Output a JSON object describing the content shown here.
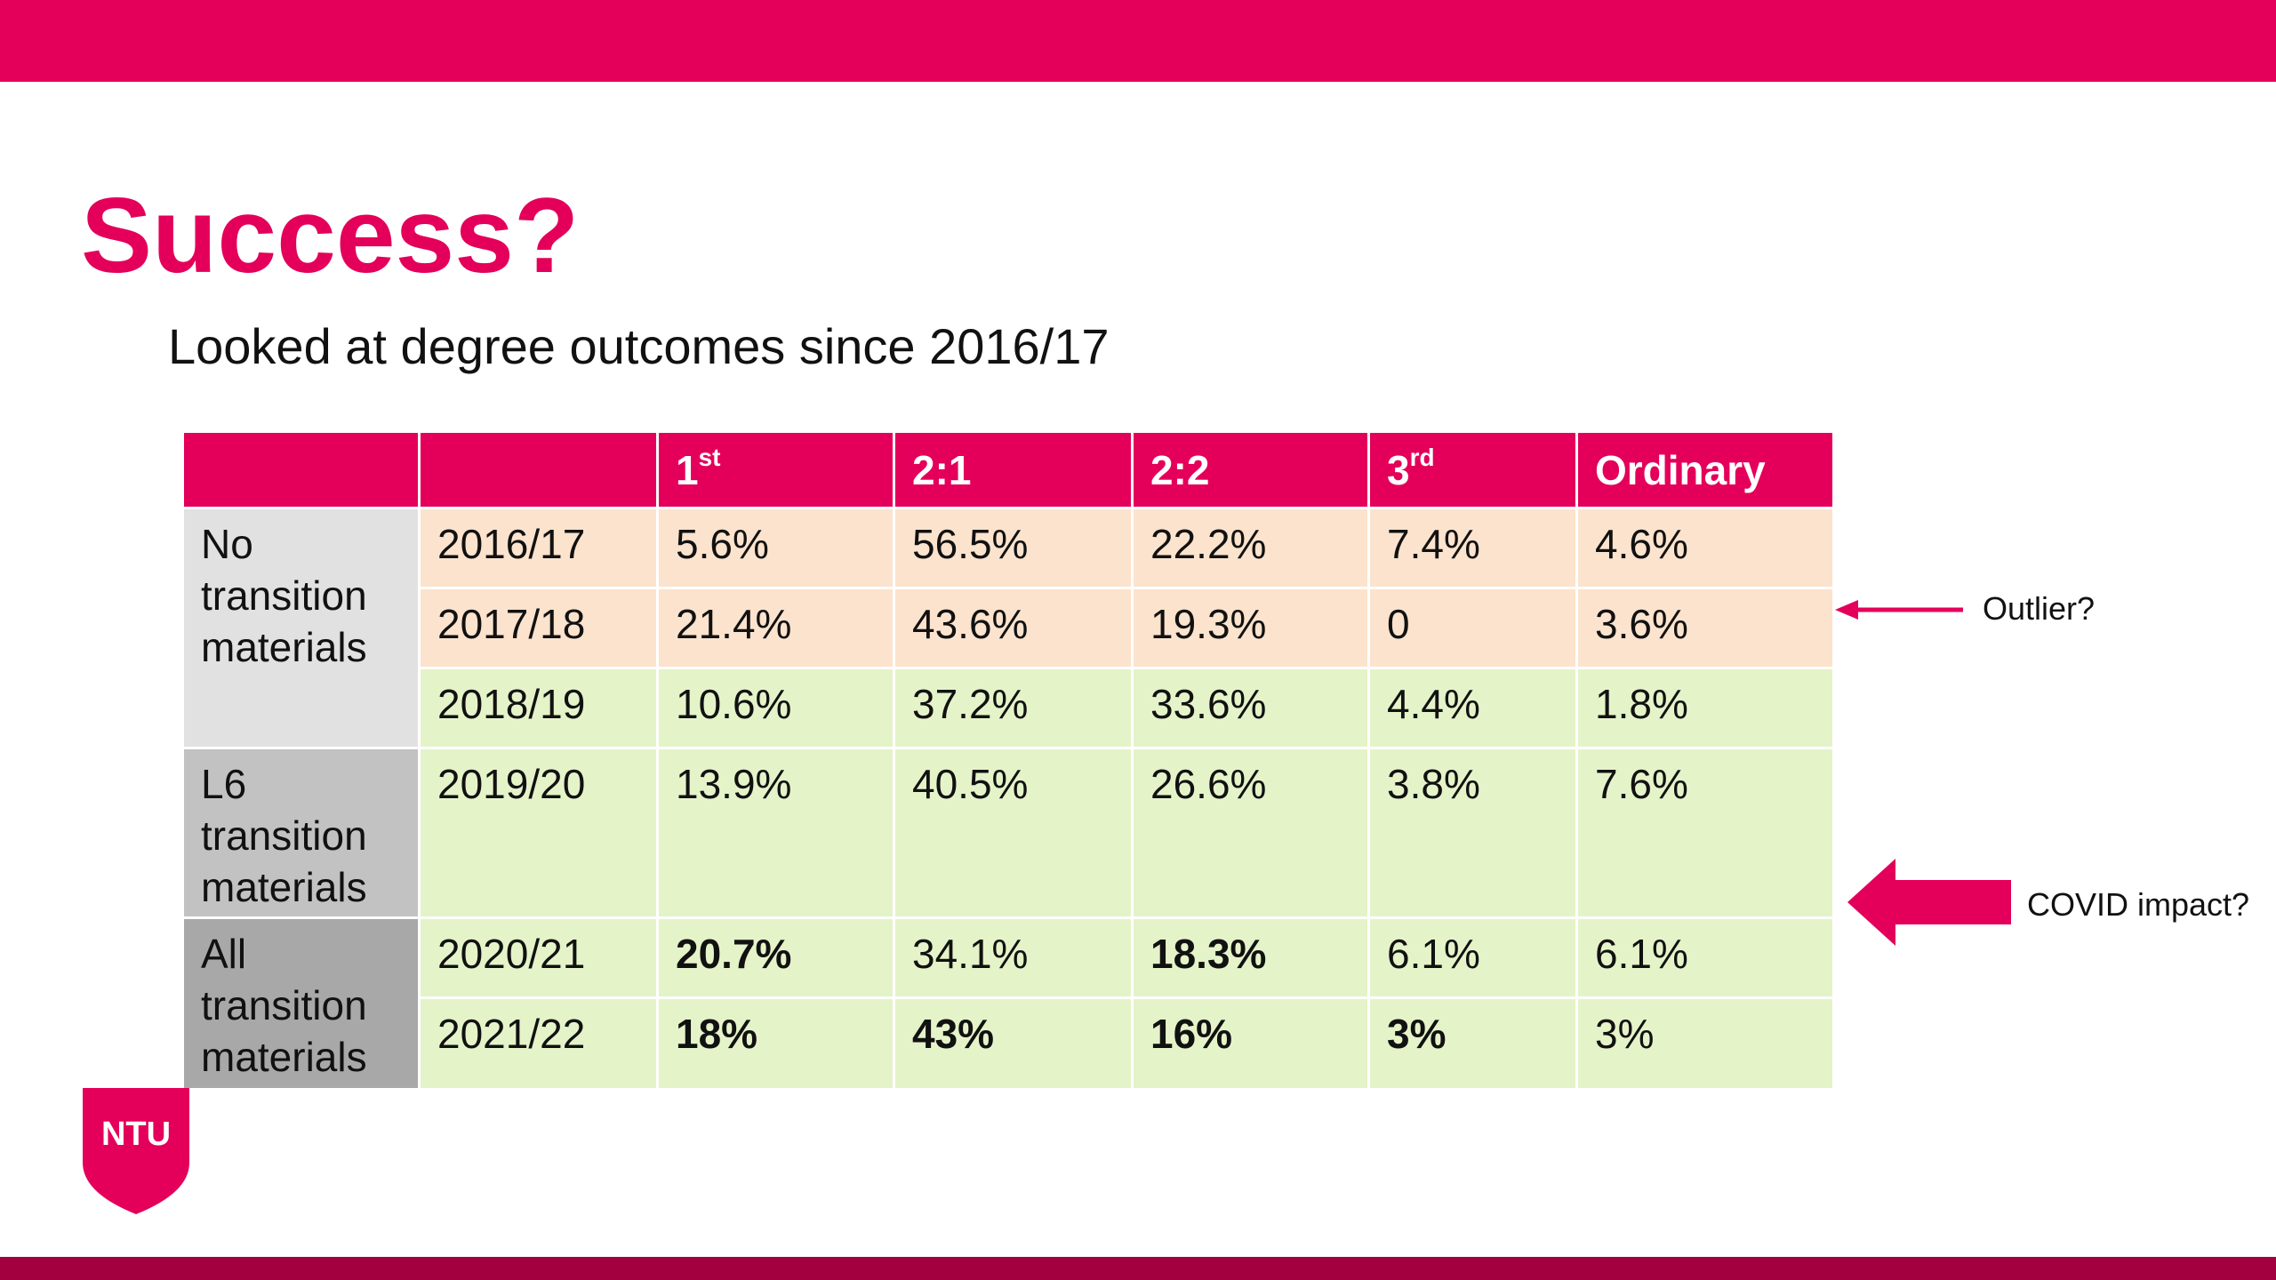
{
  "header": {
    "title": "Success?",
    "subtitle": "Looked at degree outcomes since 2016/17"
  },
  "table": {
    "columns": [
      {
        "text": "1",
        "sup": "st"
      },
      {
        "text": "2:1"
      },
      {
        "text": "2:2"
      },
      {
        "text": "3",
        "sup": "rd"
      },
      {
        "text": "Ordinary"
      }
    ],
    "groups": [
      {
        "label": "No transition materials",
        "color": "#e1e1e1",
        "rows": [
          {
            "year": "2016/17",
            "color": "#fce3cd",
            "cells": [
              "5.6%",
              "56.5%",
              "22.2%",
              "7.4%",
              "4.6%"
            ],
            "bold": []
          },
          {
            "year": "2017/18",
            "color": "#fce3cd",
            "cells": [
              "21.4%",
              "43.6%",
              "19.3%",
              "0",
              "3.6%"
            ],
            "bold": []
          },
          {
            "year": "2018/19",
            "color": "#e5f3c9",
            "cells": [
              "10.6%",
              "37.2%",
              "33.6%",
              "4.4%",
              "1.8%"
            ],
            "bold": []
          }
        ]
      },
      {
        "label": "L6 transition materials",
        "color": "#c2c2c2",
        "rows": [
          {
            "year": "2019/20",
            "color": "#e5f3c9",
            "cells": [
              "13.9%",
              "40.5%",
              "26.6%",
              "3.8%",
              "7.6%"
            ],
            "bold": []
          }
        ]
      },
      {
        "label": "All transition materials",
        "color": "#a8a8a8",
        "rows": [
          {
            "year": "2020/21",
            "color": "#e5f3c9",
            "cells": [
              "20.7%",
              "34.1%",
              "18.3%",
              "6.1%",
              "6.1%"
            ],
            "bold": [
              0,
              2
            ]
          },
          {
            "year": "2021/22",
            "color": "#e5f3c9",
            "cells": [
              "18%",
              "43%",
              "16%",
              "3%",
              "3%"
            ],
            "bold": [
              0,
              1,
              2,
              3
            ]
          }
        ]
      }
    ]
  },
  "annotations": [
    "Outlier?",
    "COVID impact?"
  ],
  "logo": "NTU"
}
